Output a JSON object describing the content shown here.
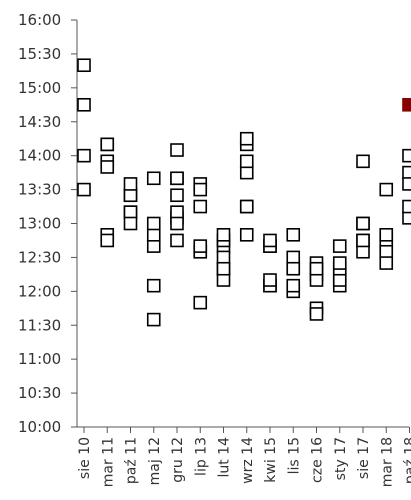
{
  "chart_data": {
    "type": "scatter",
    "title": "",
    "xlabel": "",
    "ylabel": "",
    "grid": false,
    "y_ticks": [
      "10:00",
      "10:30",
      "11:00",
      "11:30",
      "12:00",
      "12:30",
      "13:00",
      "13:30",
      "14:00",
      "14:30",
      "15:00",
      "15:30",
      "16:00"
    ],
    "ylim": [
      "10:00",
      "16:00"
    ],
    "x_ticks": [
      "sie 10",
      "mar 11",
      "paź 11",
      "maj 12",
      "gru 12",
      "lip 13",
      "lut 14",
      "wrz 14",
      "kwi 15",
      "lis 15",
      "cze 16",
      "sty 17",
      "sie 17",
      "mar 18",
      "paź 18"
    ],
    "series": [
      {
        "marker": "hollow-square",
        "color": "#000000",
        "points": [
          {
            "x": "sie 10",
            "y": "14:00"
          },
          {
            "x": "sie 10",
            "y": "15:20"
          },
          {
            "x": "sie 10",
            "y": "13:30"
          },
          {
            "x": "sie 10",
            "y": "14:45"
          },
          {
            "x": "mar 11",
            "y": "14:10"
          },
          {
            "x": "mar 11",
            "y": "12:50"
          },
          {
            "x": "mar 11",
            "y": "12:45"
          },
          {
            "x": "mar 11",
            "y": "13:55"
          },
          {
            "x": "mar 11",
            "y": "14:10"
          },
          {
            "x": "mar 11",
            "y": "13:50"
          },
          {
            "x": "paź 11",
            "y": "13:25"
          },
          {
            "x": "paź 11",
            "y": "13:10"
          },
          {
            "x": "paź 11",
            "y": "13:10"
          },
          {
            "x": "paź 11",
            "y": "13:00"
          },
          {
            "x": "paź 11",
            "y": "13:25"
          },
          {
            "x": "paź 11",
            "y": "13:35"
          },
          {
            "x": "maj 12",
            "y": "12:40"
          },
          {
            "x": "maj 12",
            "y": "12:50"
          },
          {
            "x": "maj 12",
            "y": "13:40"
          },
          {
            "x": "maj 12",
            "y": "12:05"
          },
          {
            "x": "maj 12",
            "y": "11:35"
          },
          {
            "x": "maj 12",
            "y": "13:00"
          },
          {
            "x": "gru 12",
            "y": "13:40"
          },
          {
            "x": "gru 12",
            "y": "13:40"
          },
          {
            "x": "gru 12",
            "y": "13:05"
          },
          {
            "x": "gru 12",
            "y": "13:10"
          },
          {
            "x": "gru 12",
            "y": "13:25"
          },
          {
            "x": "gru 12",
            "y": "13:00"
          },
          {
            "x": "gru 12",
            "y": "14:05"
          },
          {
            "x": "gru 12",
            "y": "12:45"
          },
          {
            "x": "lip 13",
            "y": "13:35"
          },
          {
            "x": "lip 13",
            "y": "13:30"
          },
          {
            "x": "lip 13",
            "y": "13:15"
          },
          {
            "x": "lip 13",
            "y": "12:35"
          },
          {
            "x": "lip 13",
            "y": "11:50"
          },
          {
            "x": "lip 13",
            "y": "12:35"
          },
          {
            "x": "lip 13",
            "y": "12:40"
          },
          {
            "x": "lut 14",
            "y": "12:20"
          },
          {
            "x": "lut 14",
            "y": "12:10"
          },
          {
            "x": "lut 14",
            "y": "12:40"
          },
          {
            "x": "lut 14",
            "y": "12:45"
          },
          {
            "x": "lut 14",
            "y": "12:30"
          },
          {
            "x": "lut 14",
            "y": "12:20"
          },
          {
            "x": "lut 14",
            "y": "12:50"
          },
          {
            "x": "wrz 14",
            "y": "14:10"
          },
          {
            "x": "wrz 14",
            "y": "14:15"
          },
          {
            "x": "wrz 14",
            "y": "13:15"
          },
          {
            "x": "wrz 14",
            "y": "13:15"
          },
          {
            "x": "wrz 14",
            "y": "12:50"
          },
          {
            "x": "wrz 14",
            "y": "13:45"
          },
          {
            "x": "wrz 14",
            "y": "13:55"
          },
          {
            "x": "kwi 15",
            "y": "12:40"
          },
          {
            "x": "kwi 15",
            "y": "12:40"
          },
          {
            "x": "kwi 15",
            "y": "12:05"
          },
          {
            "x": "kwi 15",
            "y": "12:05"
          },
          {
            "x": "kwi 15",
            "y": "12:45"
          },
          {
            "x": "kwi 15",
            "y": "12:10"
          },
          {
            "x": "lis 15",
            "y": "12:00"
          },
          {
            "x": "lis 15",
            "y": "12:20"
          },
          {
            "x": "lis 15",
            "y": "12:50"
          },
          {
            "x": "lis 15",
            "y": "12:30"
          },
          {
            "x": "lis 15",
            "y": "12:05"
          },
          {
            "x": "lis 15",
            "y": "12:20"
          },
          {
            "x": "cze 16",
            "y": "12:25"
          },
          {
            "x": "cze 16",
            "y": "12:15"
          },
          {
            "x": "cze 16",
            "y": "11:45"
          },
          {
            "x": "cze 16",
            "y": "12:10"
          },
          {
            "x": "cze 16",
            "y": "12:20"
          },
          {
            "x": "cze 16",
            "y": "11:40"
          },
          {
            "x": "sty 17",
            "y": "12:05"
          },
          {
            "x": "sty 17",
            "y": "12:15"
          },
          {
            "x": "sty 17",
            "y": "12:40"
          },
          {
            "x": "sty 17",
            "y": "12:10"
          },
          {
            "x": "sty 17",
            "y": "12:20"
          },
          {
            "x": "sty 17",
            "y": "12:25"
          },
          {
            "x": "sie 17",
            "y": "13:00"
          },
          {
            "x": "sie 17",
            "y": "12:45"
          },
          {
            "x": "sie 17",
            "y": "13:00"
          },
          {
            "x": "sie 17",
            "y": "12:35"
          },
          {
            "x": "sie 17",
            "y": "13:55"
          },
          {
            "x": "sie 17",
            "y": "12:45"
          },
          {
            "x": "mar 18",
            "y": "12:50"
          },
          {
            "x": "mar 18",
            "y": "12:40"
          },
          {
            "x": "mar 18",
            "y": "12:35"
          },
          {
            "x": "mar 18",
            "y": "12:25"
          },
          {
            "x": "mar 18",
            "y": "13:30"
          },
          {
            "x": "mar 18",
            "y": "12:50"
          },
          {
            "x": "paź 18",
            "y": "13:05"
          },
          {
            "x": "paź 18",
            "y": "13:15"
          },
          {
            "x": "paź 18",
            "y": "14:00"
          },
          {
            "x": "paź 18",
            "y": "13:45"
          },
          {
            "x": "paź 18",
            "y": "13:35"
          }
        ]
      },
      {
        "marker": "filled-square",
        "color": "#8b0000",
        "points": [
          {
            "x": "paź 18",
            "y": "14:45"
          }
        ]
      }
    ]
  }
}
